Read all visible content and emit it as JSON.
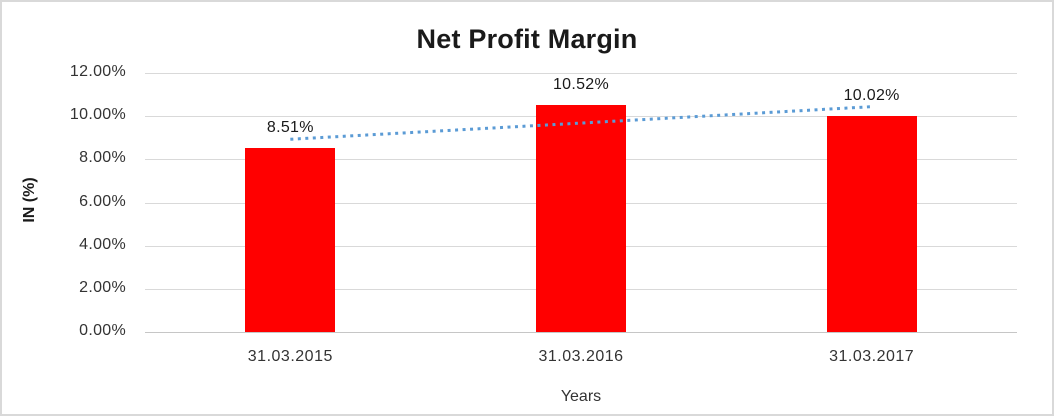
{
  "chart_data": {
    "type": "bar",
    "title": "Net Profit Margin",
    "xlabel": "Years",
    "ylabel": "IN (%)",
    "categories": [
      "31.03.2015",
      "31.03.2016",
      "31.03.2017"
    ],
    "values": [
      8.51,
      10.52,
      10.02
    ],
    "data_labels": [
      "8.51%",
      "10.52%",
      "10.02%"
    ],
    "ylim": [
      0,
      12
    ],
    "yticks": [
      {
        "value": 0,
        "label": "0.00%"
      },
      {
        "value": 2,
        "label": "2.00%"
      },
      {
        "value": 4,
        "label": "4.00%"
      },
      {
        "value": 6,
        "label": "6.00%"
      },
      {
        "value": 8,
        "label": "8.00%"
      },
      {
        "value": 10,
        "label": "10.00%"
      },
      {
        "value": 12,
        "label": "12.00%"
      }
    ],
    "grid": "horizontal",
    "legend": "none",
    "bar_color": "#FF0000",
    "trendline": {
      "type": "linear",
      "style": "dotted",
      "color": "#5B9BD5",
      "values": [
        8.93,
        9.68,
        10.44
      ]
    }
  },
  "frame": {
    "background": "#FFFFFF",
    "border_color": "#D9D9D9"
  }
}
